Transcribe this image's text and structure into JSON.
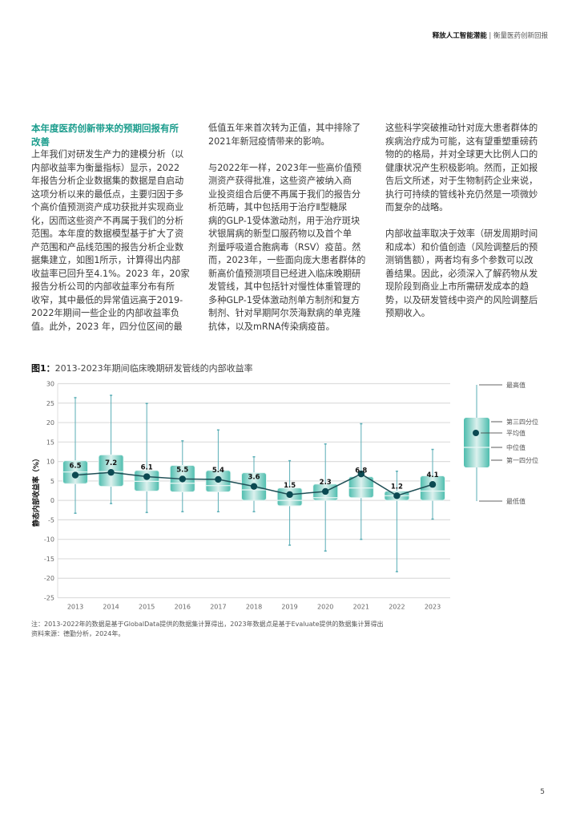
{
  "header": {
    "title": "释放人工智能潜能",
    "separator": "|",
    "subtitle": "衡量医药创新回报"
  },
  "columns": {
    "col1": {
      "heading": [
        "本年度医药创新带来的预期回报有所",
        "改善"
      ],
      "lines": [
        "上年我们对研发生产力的建模分析（以",
        "内部收益率为衡量指标）显示，2022",
        "年报告分析企业数据集的数据是自启动",
        "这项分析以来的最低点，主要归因于多",
        "个高价值预测资产成功获批并实现商业",
        "化，因而这些资产不再属于我们的分析",
        "范围。本年度的数据模型基于扩大了资",
        "产范围和产品线范围的报告分析企业数",
        "据集建立，如图1所示，计算得出内部",
        "收益率已回升至4.1%。2023 年，20家",
        "报告分析公司的内部收益率分布有所",
        "收窄，其中最低的异常值远高于2019-",
        "2022年期间一些企业的内部收益率负",
        "值。此外，2023 年，四分位区间的最"
      ]
    },
    "col2": {
      "p1": [
        "低值五年来首次转为正值，其中排除了",
        "2021年新冠疫情带来的影响。"
      ],
      "p2": [
        "与2022年一样，2023年一些高价值预",
        "测资产获得批准，这些资产被纳入商",
        "业投资组合后便不再属于我们的报告分",
        "析范畴，其中包括用于治疗Ⅱ型糖尿",
        "病的GLP-1受体激动剂，用于治疗斑块",
        "状银屑病的新型口服药物以及首个单",
        "剂量呼吸道合胞病毒（RSV）疫苗。然",
        "而，2023年，一些面向庞大患者群体的",
        "新高价值预测项目已经进入临床晚期研",
        "发管线，其中包括针对慢性体重管理的",
        "多种GLP-1受体激动剂单方制剂和复方",
        "制剂、针对早期阿尔茨海默病的单克隆",
        "抗体，以及mRNA传染病疫苗。"
      ]
    },
    "col3": {
      "p1": [
        "这些科学突破推动针对庞大患者群体的",
        "疾病治疗成为可能，这有望重塑重磅药",
        "物的的格局，并对全球更大比例人口的",
        "健康状况产生积极影响。然而，正如报",
        "告后文所述，对于生物制药企业来说，",
        "执行可持续的管线补充仍然是一项微妙",
        "而复杂的战略。"
      ],
      "p2": [
        "内部收益率取决于效率（研发周期时间",
        "和成本）和价值创造（风险调整后的预",
        "测销售额），两者均有多个参数可以改",
        "善结果。因此，必须深入了解药物从发",
        "现阶段到商业上市所需研发成本的趋",
        "势，以及研发管线中资产的风险调整后",
        "预期收入。"
      ]
    }
  },
  "figure": {
    "label": "图1：",
    "title": "2013-2023年期间临床晚期研发管线的内部收益率"
  },
  "chart_data": {
    "type": "box",
    "title": "2013-2023年期间临床晚期研发管线的内部收益率",
    "ylabel": "静态内部收益率（%）",
    "xlabel": "",
    "ylim": [
      -25,
      30
    ],
    "yticks": [
      30,
      25,
      20,
      15,
      10,
      5,
      0,
      -5,
      -10,
      -15,
      -20,
      -25
    ],
    "grid": true,
    "categories": [
      "2013",
      "2014",
      "2015",
      "2016",
      "2017",
      "2018",
      "2019",
      "2020",
      "2021",
      "2022",
      "2023"
    ],
    "mean": [
      6.5,
      7.2,
      6.1,
      5.5,
      5.4,
      3.6,
      1.5,
      2.3,
      6.8,
      1.2,
      4.1
    ],
    "mean_labels": [
      "6.5",
      "7.2",
      "6.1",
      "5.5",
      "5.4",
      "3.6",
      "1.5",
      "2.3",
      "6.8",
      "1.2",
      "4.1"
    ],
    "max": [
      26.4,
      27.0,
      24.9,
      15.3,
      18.1,
      11.2,
      10.2,
      14.5,
      19.7,
      7.5,
      13.1
    ],
    "q3": [
      10.2,
      11.7,
      7.7,
      9.0,
      7.7,
      7.1,
      3.2,
      4.2,
      6.1,
      2.4,
      6.3
    ],
    "median": [
      7.3,
      7.4,
      4.9,
      4.4,
      3.8,
      2.7,
      0.0,
      0.7,
      3.2,
      1.2,
      2.4
    ],
    "q1": [
      4.3,
      3.6,
      2.4,
      2.2,
      2.2,
      0.0,
      -1.4,
      0.0,
      0.7,
      0.0,
      0.0
    ],
    "min": [
      -3.3,
      -0.8,
      -3.1,
      -2.9,
      -2.9,
      -2.9,
      -11.5,
      -13.0,
      -10.0,
      -18.3,
      -4.8
    ],
    "legend": {
      "position": "right",
      "max": "最高值",
      "q3": "第三四分位",
      "mean": "平均值",
      "median": "中位值",
      "q1": "第一四分位",
      "min": "最低值"
    },
    "colors": {
      "box_edge": "#4dbdae",
      "box_center": "#dcf1ee",
      "whisker": "#5aaeb6",
      "mean": "#0b4a52",
      "line": "#1f4f56",
      "grid": "#dddddd"
    }
  },
  "note": "注：2013-2022年的数据是基于GlobalData提供的数据集计算得出，2023年数据点是基于Evaluate提供的数据集计算得出",
  "source": "资料来源：德勤分析，2024年。",
  "page_number": "5"
}
